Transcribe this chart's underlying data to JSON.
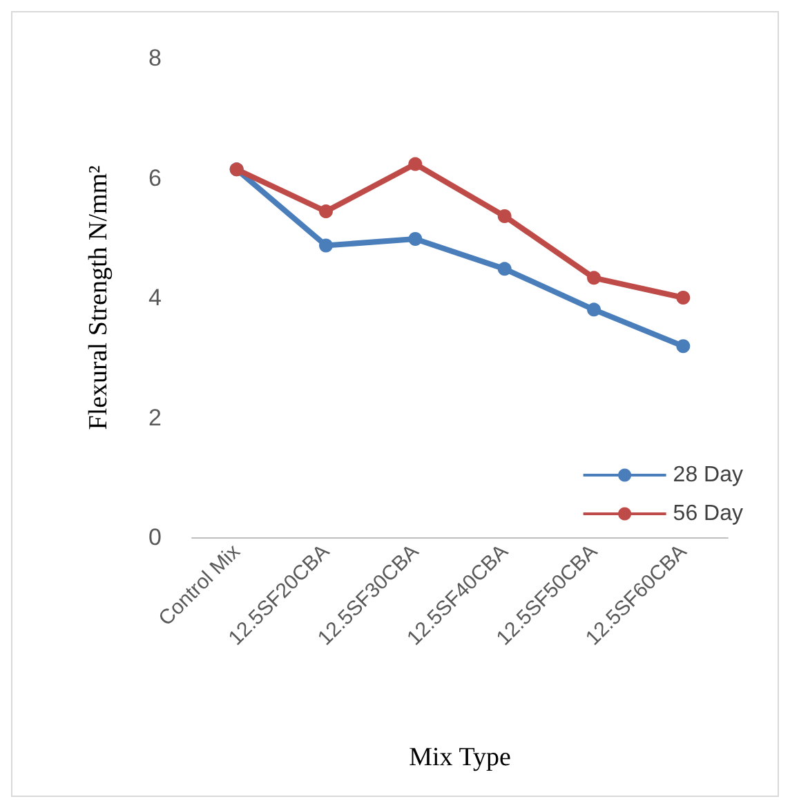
{
  "chart_data": {
    "type": "line",
    "xlabel": "Mix Type",
    "ylabel": "Flexural Strength N/mm²",
    "categories": [
      "Control Mix",
      "12.5SF20CBA",
      "12.5SF30CBA",
      "12.5SF40CBA",
      "12.5SF50CBA",
      "12.5SF60CBA"
    ],
    "series": [
      {
        "name": "28 Day",
        "color": "#4a7ebb",
        "values": [
          6.14,
          4.87,
          4.98,
          4.48,
          3.8,
          3.19
        ]
      },
      {
        "name": "56 Day",
        "color": "#be4b48",
        "values": [
          6.14,
          5.44,
          6.23,
          5.36,
          4.33,
          4.0
        ]
      }
    ],
    "ylim": [
      0,
      8
    ],
    "yticks": [
      0,
      2,
      4,
      6,
      8
    ],
    "grid": false,
    "legend": "bottom right",
    "marker": "circle",
    "line_style": "solid"
  }
}
